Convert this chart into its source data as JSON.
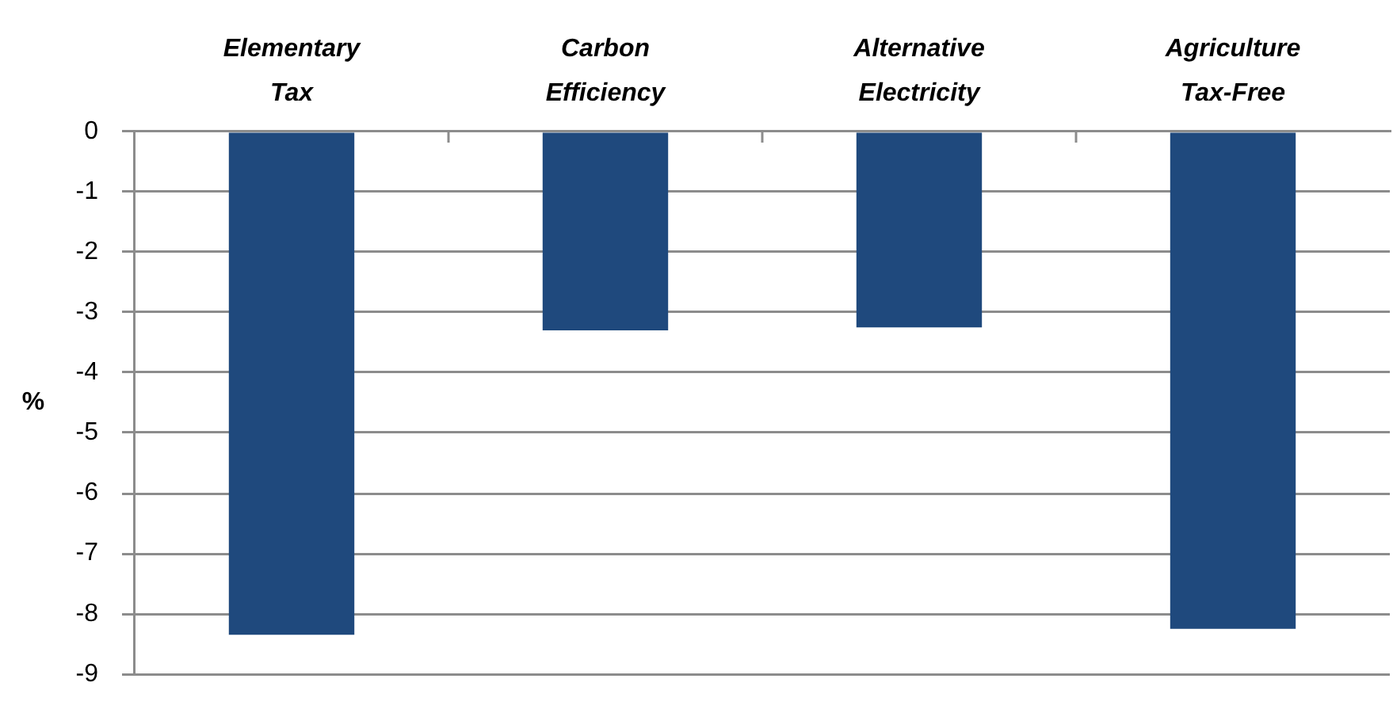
{
  "chart_data": {
    "type": "bar",
    "categories": [
      "Elementary Tax",
      "Carbon Efficiency",
      "Alternative Electricity",
      "Agriculture Tax-Free"
    ],
    "values": [
      -8.35,
      -3.3,
      -3.25,
      -8.25
    ],
    "color": "#1f497d",
    "ylabel": "%",
    "ylim": [
      -9,
      0
    ],
    "yticks": [
      0,
      -1,
      -2,
      -3,
      -4,
      -5,
      -6,
      -7,
      -8,
      -9
    ],
    "grid": "y"
  }
}
